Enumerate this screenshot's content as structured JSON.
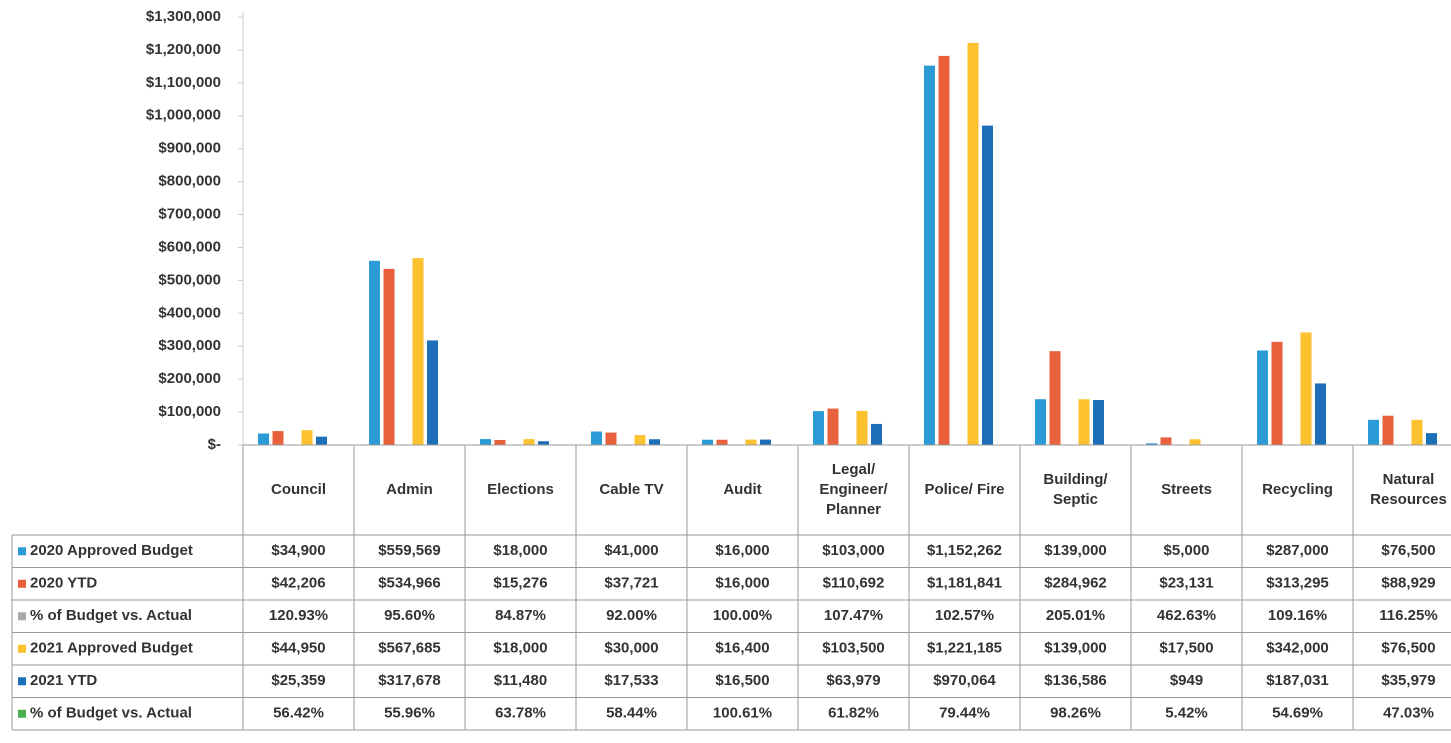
{
  "chart_data": {
    "type": "bar",
    "categories": [
      "Council",
      "Admin",
      "Elections",
      "Cable TV",
      "Audit",
      "Legal/ Engineer/ Planner",
      "Police/ Fire",
      "Building/ Septic",
      "Streets",
      "Recycling",
      "Natural Resources"
    ],
    "ylim": [
      0,
      1300000
    ],
    "yticks": [
      {
        "value": 0,
        "label": "$-"
      },
      {
        "value": 100000,
        "label": "$100,000"
      },
      {
        "value": 200000,
        "label": "$200,000"
      },
      {
        "value": 300000,
        "label": "$300,000"
      },
      {
        "value": 400000,
        "label": "$400,000"
      },
      {
        "value": 500000,
        "label": "$500,000"
      },
      {
        "value": 600000,
        "label": "$600,000"
      },
      {
        "value": 700000,
        "label": "$700,000"
      },
      {
        "value": 800000,
        "label": "$800,000"
      },
      {
        "value": 900000,
        "label": "$900,000"
      },
      {
        "value": 1000000,
        "label": "$1,000,000"
      },
      {
        "value": 1100000,
        "label": "$1,100,000"
      },
      {
        "value": 1200000,
        "label": "$1,200,000"
      },
      {
        "value": 1300000,
        "label": "$1,300,000"
      }
    ],
    "grid": false,
    "series": [
      {
        "name": "2020 Approved Budget",
        "color": "#2b9bd8",
        "values": [
          34900,
          559569,
          18000,
          41000,
          16000,
          103000,
          1152262,
          139000,
          5000,
          287000,
          76500
        ],
        "value_labels": [
          "$34,900",
          "$559,569",
          "$18,000",
          "$41,000",
          "$16,000",
          "$103,000",
          "$1,152,262",
          "$139,000",
          "$5,000",
          "$287,000",
          "$76,500"
        ]
      },
      {
        "name": "2020 YTD",
        "color": "#e8603c",
        "values": [
          42206,
          534966,
          15276,
          37721,
          16000,
          110692,
          1181841,
          284962,
          23131,
          313295,
          88929
        ],
        "value_labels": [
          "$42,206",
          "$534,966",
          "$15,276",
          "$37,721",
          "$16,000",
          "$110,692",
          "$1,181,841",
          "$284,962",
          "$23,131",
          "$313,295",
          "$88,929"
        ]
      },
      {
        "name": "% of Budget vs. Actual",
        "color": "#a9a9a9",
        "values": [
          120.93,
          95.6,
          84.87,
          92.0,
          100.0,
          107.47,
          102.57,
          205.01,
          462.63,
          109.16,
          116.25
        ],
        "value_labels": [
          "120.93%",
          "95.60%",
          "84.87%",
          "92.00%",
          "100.00%",
          "107.47%",
          "102.57%",
          "205.01%",
          "462.63%",
          "109.16%",
          "116.25%"
        ]
      },
      {
        "name": "2021 Approved Budget",
        "color": "#fbc12e",
        "values": [
          44950,
          567685,
          18000,
          30000,
          16400,
          103500,
          1221185,
          139000,
          17500,
          342000,
          76500
        ],
        "value_labels": [
          "$44,950",
          "$567,685",
          "$18,000",
          "$30,000",
          "$16,400",
          "$103,500",
          "$1,221,185",
          "$139,000",
          "$17,500",
          "$342,000",
          "$76,500"
        ]
      },
      {
        "name": "2021 YTD",
        "color": "#1e6fb9",
        "values": [
          25359,
          317678,
          11480,
          17533,
          16500,
          63979,
          970064,
          136586,
          949,
          187031,
          35979
        ],
        "value_labels": [
          "$25,359",
          "$317,678",
          "$11,480",
          "$17,533",
          "$16,500",
          "$63,979",
          "$970,064",
          "$136,586",
          "$949",
          "$187,031",
          "$35,979"
        ]
      },
      {
        "name": "% of Budget vs. Actual",
        "color": "#4caf50",
        "values": [
          56.42,
          55.96,
          63.78,
          58.44,
          100.61,
          61.82,
          79.44,
          98.26,
          5.42,
          54.69,
          47.03
        ],
        "value_labels": [
          "56.42%",
          "55.96%",
          "63.78%",
          "58.44%",
          "100.61%",
          "61.82%",
          "79.44%",
          "98.26%",
          "5.42%",
          "54.69%",
          "47.03%"
        ]
      }
    ]
  }
}
